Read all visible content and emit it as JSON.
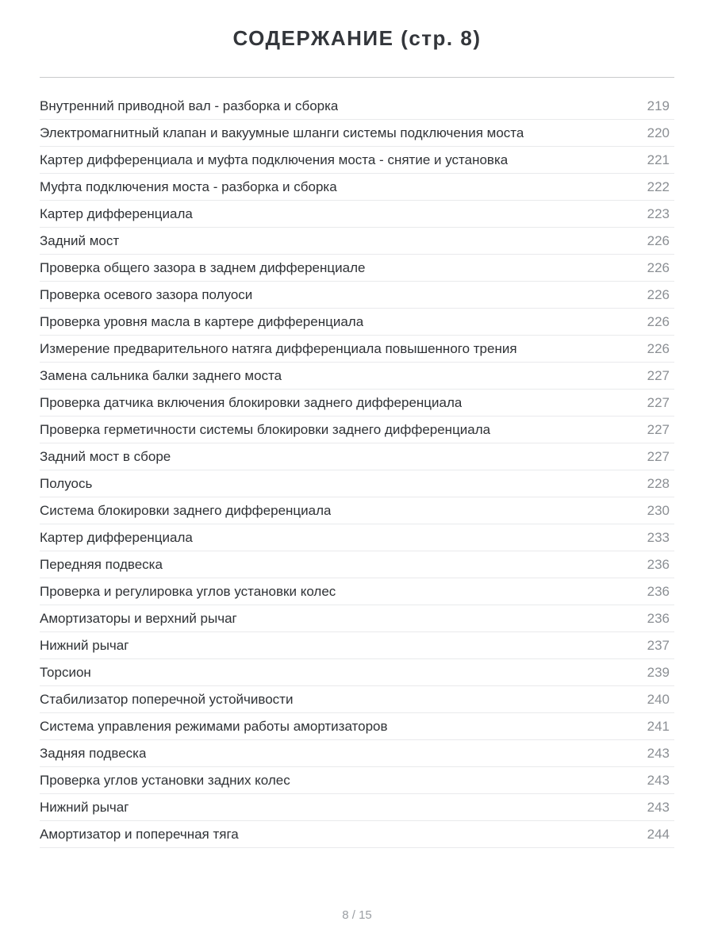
{
  "page": {
    "title": "СОДЕРЖАНИЕ (стр. 8)",
    "footer": "8 / 15"
  },
  "toc": {
    "entries": [
      {
        "label": "Внутренний приводной вал - разборка и сборка",
        "page": "219"
      },
      {
        "label": "Электромагнитный клапан и вакуумные шланги системы подключения моста",
        "page": "220"
      },
      {
        "label": "Картер дифференциала и муфта подключения моста - снятие и установка",
        "page": "221"
      },
      {
        "label": "Муфта подключения моста - разборка и сборка",
        "page": "222"
      },
      {
        "label": "Картер дифференциала",
        "page": "223"
      },
      {
        "label": "Задний мост",
        "page": "226"
      },
      {
        "label": "Проверка общего зазора в заднем дифференциале",
        "page": "226"
      },
      {
        "label": "Проверка осевого зазора полуоси",
        "page": "226"
      },
      {
        "label": "Проверка уровня масла в картере дифференциала",
        "page": "226"
      },
      {
        "label": "Измерение предварительного натяга дифференциала повышенного трения",
        "page": "226"
      },
      {
        "label": "Замена сальника балки заднего моста",
        "page": "227"
      },
      {
        "label": "Проверка датчика включения блокировки заднего дифференциала",
        "page": "227"
      },
      {
        "label": "Проверка герметичности системы блокировки заднего дифференциала",
        "page": "227"
      },
      {
        "label": "Задний мост в сборе",
        "page": "227"
      },
      {
        "label": "Полуось",
        "page": "228"
      },
      {
        "label": "Система блокировки заднего дифференциала",
        "page": "230"
      },
      {
        "label": "Картер дифференциала",
        "page": "233"
      },
      {
        "label": "Передняя подвеска",
        "page": "236"
      },
      {
        "label": "Проверка и регулировка углов установки колес",
        "page": "236"
      },
      {
        "label": "Амортизаторы и верхний рычаг",
        "page": "236"
      },
      {
        "label": "Нижний рычаг",
        "page": "237"
      },
      {
        "label": "Торсион",
        "page": "239"
      },
      {
        "label": "Стабилизатор поперечной устойчивости",
        "page": "240"
      },
      {
        "label": "Система управления режимами работы амортизаторов",
        "page": "241"
      },
      {
        "label": "Задняя подвеска",
        "page": "243"
      },
      {
        "label": "Проверка углов установки задних колес",
        "page": "243"
      },
      {
        "label": "Нижний рычаг",
        "page": "243"
      },
      {
        "label": "Амортизатор и поперечная тяга",
        "page": "244"
      }
    ]
  },
  "colors": {
    "title_text": "#33363b",
    "entry_text": "#2f3236",
    "page_number": "#8b8f94",
    "header_rule": "#c9cacc",
    "row_divider": "#e9eaec",
    "footer_text": "#9a9ea3",
    "background": "#ffffff"
  }
}
